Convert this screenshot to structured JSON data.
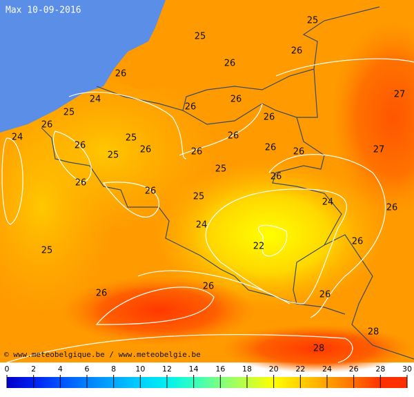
{
  "title": "Max 10-09-2016",
  "credit": "© www.meteobelgique.be / www.meteobelgie.be",
  "labels": [
    25,
    25,
    26,
    26,
    26,
    27,
    24,
    26,
    26,
    25,
    26,
    26,
    24,
    25,
    26,
    26,
    26,
    27,
    25,
    26,
    26,
    26,
    25,
    26,
    26,
    26,
    25,
    24,
    26,
    24,
    26,
    22,
    25,
    26,
    26,
    26,
    28,
    28
  ],
  "colorbar": {
    "ticks": [
      0,
      2,
      4,
      6,
      8,
      10,
      12,
      14,
      16,
      18,
      20,
      22,
      24,
      26,
      28,
      30
    ],
    "colors": [
      "#0000c8",
      "#0020f0",
      "#0050ff",
      "#0080ff",
      "#00a8ff",
      "#00d0ff",
      "#00f0f0",
      "#30ffc0",
      "#80ff80",
      "#c0ff40",
      "#ffff00",
      "#ffd000",
      "#ffa000",
      "#ff7000",
      "#ff3000"
    ]
  }
}
